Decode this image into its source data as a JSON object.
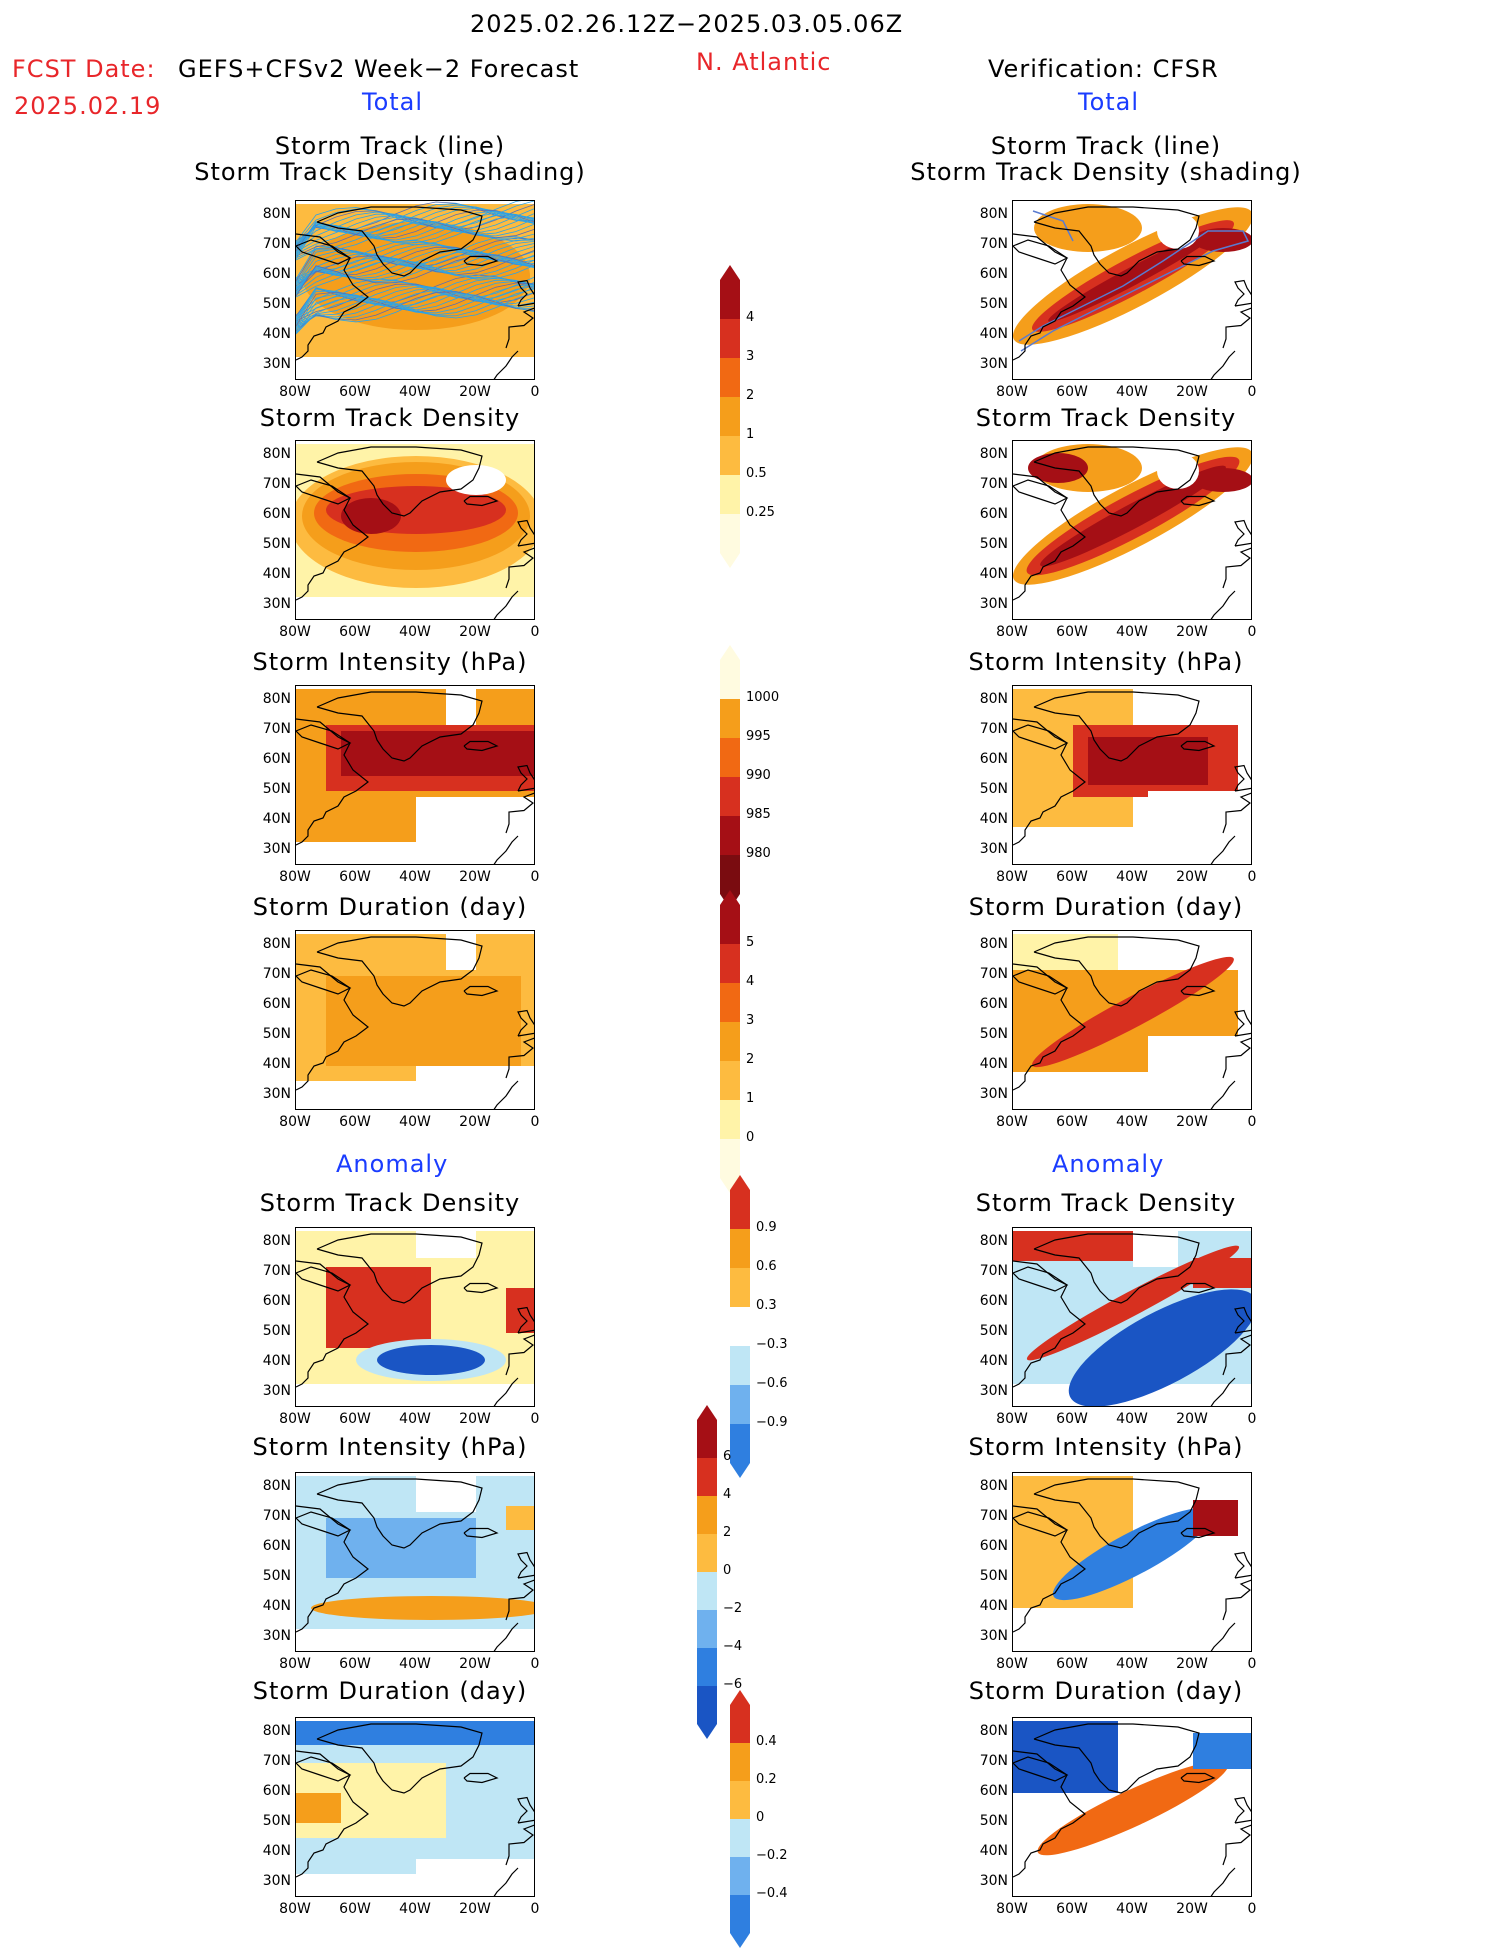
{
  "header": {
    "period": "2025.02.26.12Z−2025.03.05.06Z",
    "fcst_label": "FCST Date:",
    "fcst_model": "GEFS+CFSv2 Week−2 Forecast",
    "fcst_date": "2025.02.19",
    "region": "N. Atlantic",
    "verification": "Verification: CFSR",
    "left_total": "Total",
    "right_total": "Total",
    "left_anomaly": "Anomaly",
    "right_anomaly": "Anomaly"
  },
  "axes": {
    "y_ticks": [
      "80N",
      "70N",
      "60N",
      "50N",
      "40N",
      "30N"
    ],
    "x_ticks": [
      "80W",
      "60W",
      "40W",
      "20W",
      "0"
    ]
  },
  "panels": {
    "track_title_1": "Storm Track (line)",
    "track_title_2": "Storm Track Density (shading)",
    "density": "Storm Track Density",
    "intensity": "Storm Intensity (hPa)",
    "duration": "Storm Duration (day)"
  },
  "colorbars": {
    "density_total": [
      "4",
      "3",
      "2",
      "1",
      "0.5",
      "0.25"
    ],
    "intensity_total": [
      "1000",
      "995",
      "990",
      "985",
      "980"
    ],
    "duration_total": [
      "5",
      "4",
      "3",
      "2",
      "1",
      "0"
    ],
    "density_anom": [
      "0.9",
      "0.6",
      "0.3",
      "−0.3",
      "−0.6",
      "−0.9"
    ],
    "intensity_anom": [
      "6",
      "4",
      "2",
      "0",
      "−2",
      "−4",
      "−6"
    ],
    "duration_anom": [
      "0.4",
      "0.2",
      "0",
      "−0.2",
      "−0.4"
    ]
  },
  "colors": {
    "dark_red": "#a50f15",
    "red": "#d7301f",
    "orange_red": "#f16913",
    "orange": "#f59e1b",
    "light_orange": "#fdbb40",
    "pale_yellow": "#fff3a8",
    "light_blue": "#bfe6f5",
    "mid_blue": "#6fb1ee",
    "blue": "#2f7fe0",
    "dark_blue": "#1a55c4",
    "track_blue": "#2ba3e8"
  }
}
